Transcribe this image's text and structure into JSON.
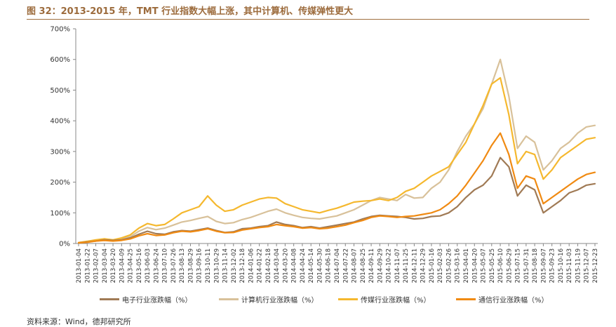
{
  "header": {
    "title": "图 32：2013-2015 年，TMT 行业指数大幅上涨，其中计算机、传媒弹性更大"
  },
  "footer": {
    "source": "资料来源：Wind，德邦研究所"
  },
  "colors": {
    "electronics": "#a07a55",
    "computer": "#d8c19a",
    "media": "#f5b82e",
    "telecom": "#f08a12",
    "axis": "#888888",
    "title": "#9c6b3c"
  },
  "chart_data": {
    "type": "line",
    "title": "",
    "xlabel": "",
    "ylabel": "",
    "ylim": [
      0,
      700
    ],
    "yticks": [
      "0%",
      "100%",
      "200%",
      "300%",
      "400%",
      "500%",
      "600%",
      "700%"
    ],
    "x": [
      "2013-01-04",
      "2013-01-22",
      "2013-02-07",
      "2013-03-04",
      "2013-03-20",
      "2013-04-09",
      "2013-04-25",
      "2013-05-16",
      "2013-06-03",
      "2013-06-24",
      "2013-07-10",
      "2013-07-26",
      "2013-08-13",
      "2013-08-29",
      "2013-09-16",
      "2013-10-11",
      "2013-10-29",
      "2013-11-14",
      "2013-12-02",
      "2013-12-18",
      "2014-01-06",
      "2014-01-22",
      "2014-02-18",
      "2014-03-04",
      "2014-03-20",
      "2014-04-08",
      "2014-04-24",
      "2014-05-14",
      "2014-05-30",
      "2014-06-18",
      "2014-07-04",
      "2014-07-22",
      "2014-08-07",
      "2014-08-25",
      "2014-09-11",
      "2014-09-29",
      "2014-10-22",
      "2014-11-07",
      "2014-11-25",
      "2014-12-11",
      "2014-12-29",
      "2015-01-16",
      "2015-02-03",
      "2015-02-26",
      "2015-03-16",
      "2015-04-01",
      "2015-04-20",
      "2015-05-07",
      "2015-05-25",
      "2015-06-10",
      "2015-06-29",
      "2015-07-15",
      "2015-07-31",
      "2015-08-18",
      "2015-09-07",
      "2015-09-23",
      "2015-10-16",
      "2015-11-03",
      "2015-11-19",
      "2015-12-07",
      "2015-12-23"
    ],
    "series": [
      {
        "name": "电子行业涨跌幅（%）",
        "values": [
          2,
          5,
          8,
          12,
          10,
          12,
          18,
          30,
          40,
          32,
          30,
          38,
          42,
          40,
          45,
          50,
          42,
          36,
          38,
          48,
          50,
          55,
          58,
          70,
          62,
          58,
          52,
          55,
          50,
          55,
          60,
          65,
          70,
          80,
          88,
          92,
          90,
          88,
          85,
          80,
          82,
          88,
          90,
          100,
          120,
          150,
          175,
          190,
          220,
          280,
          250,
          155,
          190,
          175,
          100,
          120,
          140,
          165,
          175,
          190,
          195
        ]
      },
      {
        "name": "计算机行业涨跌幅（%）",
        "values": [
          3,
          6,
          10,
          14,
          12,
          16,
          22,
          40,
          52,
          45,
          50,
          60,
          70,
          75,
          82,
          88,
          72,
          65,
          68,
          78,
          85,
          95,
          105,
          112,
          100,
          92,
          85,
          82,
          80,
          85,
          90,
          100,
          110,
          125,
          140,
          150,
          145,
          140,
          160,
          148,
          150,
          180,
          200,
          240,
          300,
          350,
          390,
          440,
          520,
          600,
          480,
          310,
          350,
          330,
          240,
          270,
          310,
          330,
          360,
          380,
          385
        ]
      },
      {
        "name": "传媒行业涨跌幅（%）",
        "values": [
          3,
          7,
          12,
          15,
          12,
          18,
          28,
          50,
          65,
          58,
          62,
          80,
          100,
          110,
          120,
          155,
          125,
          105,
          110,
          125,
          135,
          145,
          150,
          148,
          130,
          120,
          110,
          105,
          100,
          108,
          115,
          125,
          135,
          138,
          140,
          145,
          140,
          150,
          170,
          180,
          200,
          220,
          235,
          250,
          290,
          330,
          390,
          450,
          520,
          540,
          420,
          260,
          300,
          290,
          210,
          240,
          280,
          300,
          320,
          340,
          345
        ]
      },
      {
        "name": "通信行业涨跌幅（%）",
        "values": [
          2,
          4,
          8,
          10,
          8,
          10,
          15,
          25,
          32,
          26,
          28,
          35,
          40,
          38,
          42,
          48,
          40,
          35,
          36,
          44,
          48,
          52,
          55,
          62,
          58,
          55,
          50,
          52,
          48,
          50,
          55,
          60,
          68,
          75,
          85,
          90,
          88,
          85,
          88,
          90,
          95,
          100,
          110,
          130,
          155,
          190,
          230,
          270,
          320,
          360,
          290,
          180,
          220,
          210,
          130,
          150,
          170,
          190,
          210,
          225,
          232
        ]
      }
    ]
  }
}
